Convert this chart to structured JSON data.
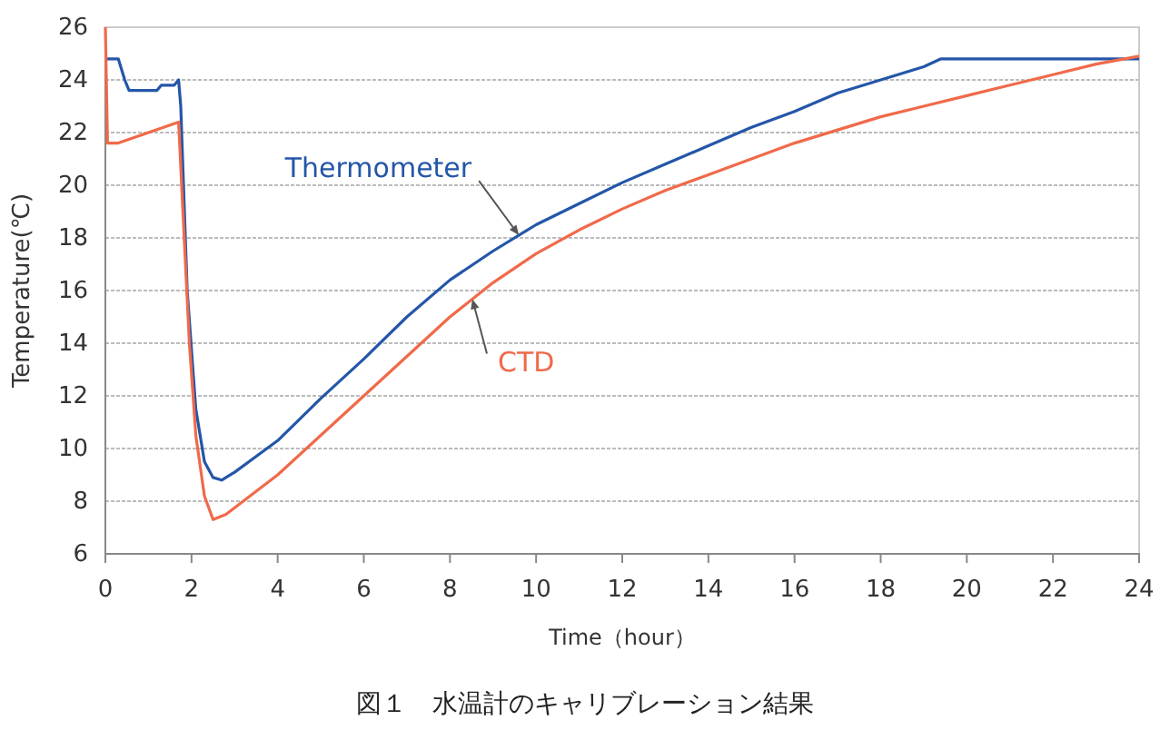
{
  "chart_data": {
    "type": "line",
    "xlabel": "Time（hour）",
    "ylabel": "Temperature(℃)",
    "xlim": [
      0,
      24
    ],
    "xticks": [
      0,
      2,
      4,
      6,
      8,
      10,
      12,
      14,
      16,
      18,
      20,
      22,
      24
    ],
    "ylim": [
      6,
      26
    ],
    "yticks": [
      6,
      8,
      10,
      12,
      14,
      16,
      18,
      20,
      22,
      24,
      26
    ],
    "grid": "y",
    "annotations": [
      "図１　水温計のキャリブレーション結果"
    ],
    "series": [
      {
        "name": "Thermometer",
        "color": "#2456a8",
        "x": [
          0,
          0.3,
          0.45,
          0.55,
          1.2,
          1.3,
          1.6,
          1.7,
          1.75,
          1.9,
          2.1,
          2.3,
          2.5,
          2.7,
          3.0,
          4,
          5,
          6,
          7,
          8,
          9,
          10,
          11,
          12,
          13,
          14,
          15,
          16,
          17,
          18,
          19,
          19.4,
          24
        ],
        "values": [
          24.8,
          24.8,
          24.0,
          23.6,
          23.6,
          23.8,
          23.8,
          24.0,
          23.0,
          16,
          11.5,
          9.5,
          8.9,
          8.8,
          9.1,
          10.3,
          11.9,
          13.4,
          15.0,
          16.4,
          17.5,
          18.5,
          19.3,
          20.1,
          20.8,
          21.5,
          22.2,
          22.8,
          23.5,
          24.0,
          24.5,
          24.8,
          24.8
        ]
      },
      {
        "name": "CTD",
        "color": "#f06a4a",
        "x": [
          0,
          0.05,
          0.3,
          1,
          1.7,
          1.8,
          1.95,
          2.1,
          2.3,
          2.5,
          2.8,
          3.2,
          4,
          5,
          6,
          7,
          8,
          9,
          10,
          11,
          12,
          13,
          14,
          15,
          16,
          17,
          18,
          19,
          20,
          21,
          22,
          23,
          24
        ],
        "values": [
          26,
          21.6,
          21.6,
          22.0,
          22.4,
          19,
          14,
          10.5,
          8.2,
          7.3,
          7.5,
          8.0,
          9.0,
          10.5,
          12.0,
          13.5,
          15.0,
          16.3,
          17.4,
          18.3,
          19.1,
          19.8,
          20.4,
          21.0,
          21.6,
          22.1,
          22.6,
          23.0,
          23.4,
          23.8,
          24.2,
          24.6,
          24.9
        ]
      }
    ]
  }
}
